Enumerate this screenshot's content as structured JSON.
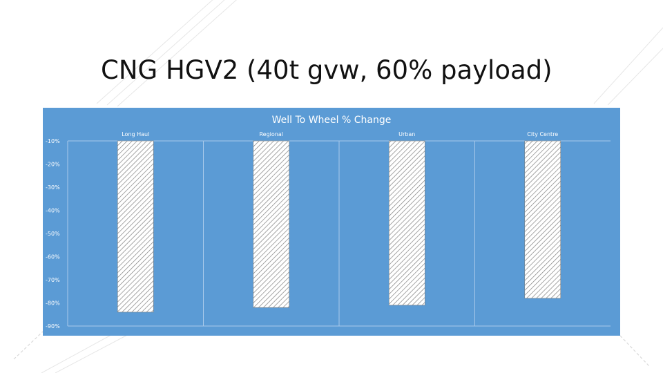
{
  "slide": {
    "title": "CNG HGV2 (40t gvw, 60% payload)"
  },
  "colors": {
    "panel_background": "#5b9bd5",
    "bar_fill": "#ffffff",
    "bar_hatch": "#7f7f7f",
    "text_light": "#ffffff"
  },
  "chart_data": {
    "type": "bar",
    "title": "Well To Wheel % Change",
    "categories": [
      "Long Haul",
      "Regional",
      "Urban",
      "City Centre"
    ],
    "values": [
      -84,
      -82,
      -81,
      -78
    ],
    "ylim": [
      -90,
      -10
    ],
    "yticks": [
      -10,
      -20,
      -30,
      -40,
      -50,
      -60,
      -70,
      -80,
      -90
    ],
    "ytick_labels": [
      "-10%",
      "-20%",
      "-30%",
      "-40%",
      "-50%",
      "-60%",
      "-70%",
      "-80%",
      "-90%"
    ],
    "category_axis_position": "top",
    "grid": "vertical separators",
    "legend": "none",
    "bar_pattern": "diagonal hatch"
  }
}
